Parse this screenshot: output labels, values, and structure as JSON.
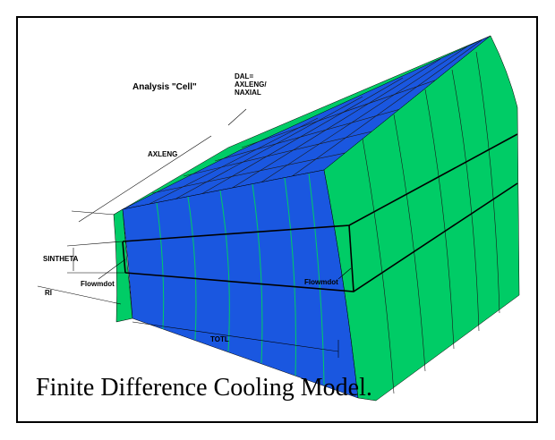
{
  "figure": {
    "labels": {
      "title": "Analysis \"Cell\"",
      "dal": [
        "DAL=",
        "AXLENG/",
        "NAXIAL"
      ],
      "axleng": "AXLENG",
      "sintheta": "SINTHETA",
      "flowmdot_left": "Flowmdot",
      "flowmdot_right": "Flowmdot",
      "ri": "RI",
      "totl": "TOTL"
    },
    "caption": "Finite Difference Cooling Model."
  }
}
